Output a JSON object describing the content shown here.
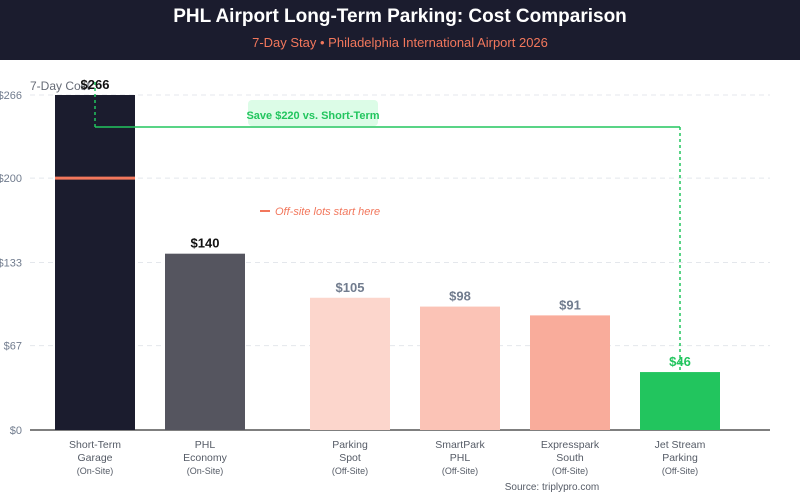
{
  "header": {
    "title": "PHL Airport Long-Term Parking: Cost Comparison",
    "subtitle": "7-Day Stay • Philadelphia International Airport 2026"
  },
  "colors": {
    "header_bg": "#1b1c2e",
    "subtitle": "#f2775c",
    "save": "#22c55e",
    "divider_marker": "#f2775c"
  },
  "chart_data": {
    "type": "bar",
    "title": "PHL Airport Long-Term Parking: Cost Comparison",
    "ylabel": "7-Day Cost",
    "xlabel": "",
    "ylim": [
      0,
      266
    ],
    "yticks": [
      {
        "value": 0,
        "label": "$0"
      },
      {
        "value": 67,
        "label": "$67"
      },
      {
        "value": 133,
        "label": "$133"
      },
      {
        "value": 200,
        "label": "$200"
      },
      {
        "value": 266,
        "label": "$266"
      }
    ],
    "grid": true,
    "categories": [
      {
        "lines": [
          "Short-Term",
          "Garage"
        ],
        "tag": "(On-Site)",
        "value": 266,
        "value_label": "$266",
        "color": "#1b1c2e",
        "label_color": "#111111"
      },
      {
        "lines": [
          "PHL",
          "Economy"
        ],
        "tag": "(On-Site)",
        "value": 140,
        "value_label": "$140",
        "color": "#55555f",
        "label_color": "#111111"
      },
      {
        "lines": [
          "Parking",
          "Spot"
        ],
        "tag": "(Off-Site)",
        "value": 105,
        "value_label": "$105",
        "color": "#fcd6cc",
        "label_color": "#717c8e"
      },
      {
        "lines": [
          "SmartPark",
          "PHL"
        ],
        "tag": "(Off-Site)",
        "value": 98,
        "value_label": "$98",
        "color": "#fbc3b6",
        "label_color": "#717c8e"
      },
      {
        "lines": [
          "Expresspark",
          "South"
        ],
        "tag": "(Off-Site)",
        "value": 91,
        "value_label": "$91",
        "color": "#f9ac9b",
        "label_color": "#717c8e"
      },
      {
        "lines": [
          "Jet Stream",
          "Parking"
        ],
        "tag": "(Off-Site)",
        "value": 46,
        "value_label": "$46",
        "color": "#22c55e",
        "label_color": "#22c55e"
      }
    ],
    "annotations": {
      "savings": "Save $220 vs. Short-Term",
      "offsite": "Off-site lots start here",
      "offsite_marker_value": 200
    },
    "source": "Source: triplypro.com"
  }
}
